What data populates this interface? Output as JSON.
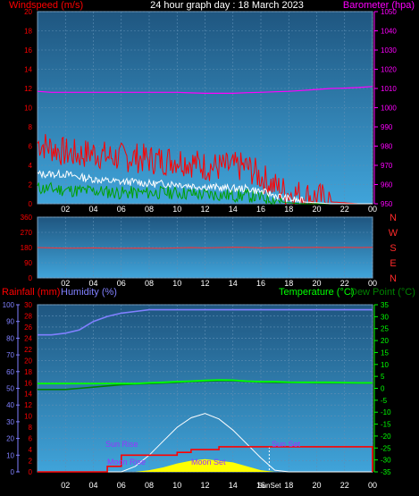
{
  "title": "24 hour graph day : 18 March 2023",
  "colors": {
    "wind": "#ff0000",
    "gust": "#ff0000",
    "avg": "#ffffff",
    "dir_text": "#ff2a2a",
    "baro": "#ff00ff",
    "rain": "#ff0000",
    "humidity": "#8080ff",
    "temp": "#00ff00",
    "dew": "#008000",
    "sun": "#ffffff",
    "moon": "#ffff00",
    "label_purple": "#9933ff"
  },
  "x_ticks": [
    "02",
    "04",
    "06",
    "08",
    "10",
    "12",
    "14",
    "16",
    "18",
    "20",
    "22",
    "00"
  ],
  "panel1": {
    "left_label": "Windspeed (m/s)",
    "right_label": "Barometer (hpa)",
    "left_ticks": [
      "0",
      "2",
      "4",
      "6",
      "8",
      "10",
      "12",
      "14",
      "16",
      "18",
      "20"
    ],
    "right_ticks": [
      "950",
      "960",
      "970",
      "980",
      "990",
      "1000",
      "1010",
      "1020",
      "1030",
      "1040",
      "1050"
    ]
  },
  "panel2": {
    "ticks": [
      "0",
      "90",
      "180",
      "270",
      "360"
    ],
    "compass": [
      "N",
      "W",
      "S",
      "E",
      "N"
    ]
  },
  "panel3": {
    "rain_label": "Rainfall (mm)",
    "humidity_label": "Humidity (%)",
    "temp_label": "Temperature (°C)",
    "dew_label": "Dew Point (°C)",
    "hum_ticks": [
      "0",
      "10",
      "20",
      "30",
      "40",
      "50",
      "60",
      "70",
      "80",
      "90",
      "100"
    ],
    "rain_ticks": [
      "0",
      "2",
      "4",
      "6",
      "8",
      "10",
      "12",
      "14",
      "16",
      "18",
      "20",
      "22",
      "24",
      "26",
      "28",
      "30"
    ],
    "temp_ticks": [
      "-35",
      "-30",
      "-25",
      "-20",
      "-15",
      "-10",
      "-5",
      "0",
      "5",
      "10",
      "15",
      "20",
      "25",
      "30",
      "35"
    ],
    "sun_rise": "Sun Rise",
    "sun_set": "Sun Set",
    "moon_rise": "Moon Rise",
    "moon_set": "Moon Set",
    "sunset_axis_label": "SunSet"
  },
  "chart_data": [
    {
      "type": "line",
      "title": "24 hour graph day : 18 March 2023",
      "xlabel": "",
      "ylabel": "Windspeed (m/s)",
      "y2label": "Barometer (hpa)",
      "x_hours": [
        0,
        1,
        2,
        3,
        4,
        5,
        6,
        7,
        8,
        9,
        10,
        11,
        12,
        13,
        14,
        15,
        16,
        17,
        18,
        19,
        20,
        21,
        22,
        23,
        24
      ],
      "ylim": [
        0,
        20
      ],
      "y2lim": [
        950,
        1050
      ],
      "series": [
        {
          "name": "Barometer (hpa)",
          "axis": "right",
          "values": [
            1008.5,
            1008,
            1008,
            1008,
            1008,
            1008,
            1008,
            1008,
            1008,
            1008,
            1008,
            1007.7,
            1007.5,
            1007.5,
            1007.5,
            1007.8,
            1008,
            1008.3,
            1008.5,
            1009,
            1009.5,
            1010,
            1010.2,
            1010.5,
            1011
          ]
        },
        {
          "name": "Windspeed (m/s)",
          "axis": "left",
          "values": [
            6,
            5.5,
            5,
            4.8,
            5,
            4.6,
            4.5,
            4.5,
            4.3,
            4.2,
            4.3,
            4,
            3.6,
            3.5,
            3.5,
            3.5,
            2.5,
            1.5,
            0.8,
            0.6,
            0.3,
            0.2,
            0.1,
            0,
            0
          ]
        },
        {
          "name": "Average",
          "axis": "left",
          "values": [
            3,
            3,
            3,
            2.7,
            2.5,
            2.3,
            2.2,
            2.2,
            2,
            2,
            2,
            1.8,
            1.7,
            1.6,
            1.5,
            1.5,
            1.2,
            0.8,
            0.4,
            0.2,
            0.1,
            0,
            0,
            0,
            0
          ]
        },
        {
          "name": "Gust",
          "axis": "left",
          "values": [
            1.5,
            1.4,
            1.3,
            1.2,
            1.2,
            1.1,
            1,
            1,
            1,
            1,
            1,
            0.9,
            0.8,
            0.8,
            0.7,
            0.7,
            0.5,
            0.3,
            0.1,
            0,
            0,
            0,
            0,
            0,
            0
          ]
        }
      ]
    },
    {
      "type": "line",
      "ylim": [
        0,
        360
      ],
      "series": [
        {
          "name": "Wind direction",
          "values": [
            180,
            178,
            176,
            177,
            178,
            176,
            175,
            177,
            176,
            175,
            178,
            180,
            178,
            180,
            182,
            181,
            178,
            180,
            181,
            180,
            181,
            180,
            181,
            180,
            181
          ]
        }
      ]
    },
    {
      "type": "line",
      "ylim_humidity": [
        0,
        100
      ],
      "ylim_rain": [
        0,
        30
      ],
      "ylim_temp": [
        -35,
        35
      ],
      "series": [
        {
          "name": "Humidity (%)",
          "axis": "humidity",
          "values": [
            82,
            82,
            83,
            85,
            90,
            93,
            95,
            96,
            97,
            97,
            97,
            97,
            97,
            97,
            97,
            97,
            97,
            97,
            97,
            97,
            97,
            97,
            97,
            97,
            97
          ]
        },
        {
          "name": "Temperature (°C)",
          "axis": "temp",
          "values": [
            2,
            2,
            2,
            2,
            2,
            2,
            2,
            2,
            2.3,
            2.5,
            2.8,
            3,
            3.3,
            3.5,
            3.4,
            3,
            2.8,
            2.8,
            2.6,
            2.5,
            2.5,
            2.5,
            2.4,
            2.3,
            2.3
          ]
        },
        {
          "name": "Dew Point (°C)",
          "axis": "temp",
          "values": [
            -0.5,
            -0.5,
            -0.5,
            0,
            0.5,
            1,
            1.5,
            1.8,
            2,
            2.2,
            2.5,
            2.8,
            3,
            3.2,
            3.2,
            2.9,
            2.6,
            2.5,
            2.4,
            2.4,
            2.3,
            2.3,
            2.3,
            2.2,
            2.2
          ]
        },
        {
          "name": "Rainfall (mm)",
          "axis": "rain",
          "values": [
            0,
            0,
            0,
            0,
            0,
            1,
            3,
            3,
            3,
            3,
            3.5,
            4,
            4,
            4.5,
            4.5,
            4.5,
            4.5,
            4.5,
            4.5,
            4.5,
            4.5,
            4.5,
            4.5,
            4.5,
            0
          ]
        },
        {
          "name": "Sun elevation",
          "axis": "rain",
          "values": [
            0,
            0,
            0,
            0,
            0,
            0,
            0,
            1,
            3,
            5.5,
            8,
            9.7,
            10.5,
            9.5,
            7.5,
            5,
            2.5,
            0.3,
            0,
            0,
            0,
            0,
            0,
            0,
            0
          ]
        },
        {
          "name": "Moon",
          "axis": "rain",
          "values": [
            0,
            0,
            0,
            0,
            0,
            0,
            0,
            0,
            0.3,
            0.8,
            1.5,
            2,
            2.3,
            2,
            1.7,
            1,
            0.3,
            0,
            0,
            0,
            0,
            0,
            0,
            0,
            0
          ]
        }
      ]
    }
  ]
}
